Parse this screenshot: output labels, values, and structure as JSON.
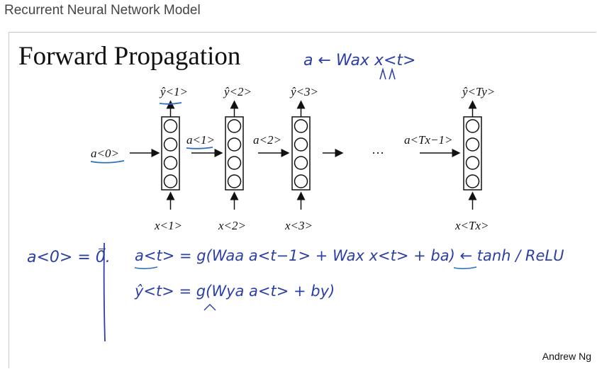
{
  "header": {
    "course_title": "Recurrent Neural Network Model"
  },
  "slide": {
    "title": "Forward Propagation",
    "author": "Andrew Ng"
  },
  "network": {
    "cells": [
      {
        "output_label": "ŷ<1>",
        "input_label": "x<1>"
      },
      {
        "output_label": "ŷ<2>",
        "input_label": "x<2>"
      },
      {
        "output_label": "ŷ<3>",
        "input_label": "x<3>"
      },
      {
        "output_label": "ŷ<Ty>",
        "input_label": "x<Tx>"
      }
    ],
    "activations": [
      "a<0>",
      "a<1>",
      "a<2>",
      "a<Tx−1>"
    ],
    "ellipsis": "···"
  },
  "annotations": {
    "top_note": "a ← Wax x<t>",
    "init": "a<0> = 0⃗.",
    "eq_a": "a<t> = g(Waa a<t−1> + Wax x<t> + ba)  ←  tanh / ReLU",
    "eq_y": "ŷ<t> = g(Wya a<t> + by)"
  },
  "colors": {
    "ink": "#111111",
    "pen": "#2b3fa8",
    "underline": "#2a6fc4"
  }
}
